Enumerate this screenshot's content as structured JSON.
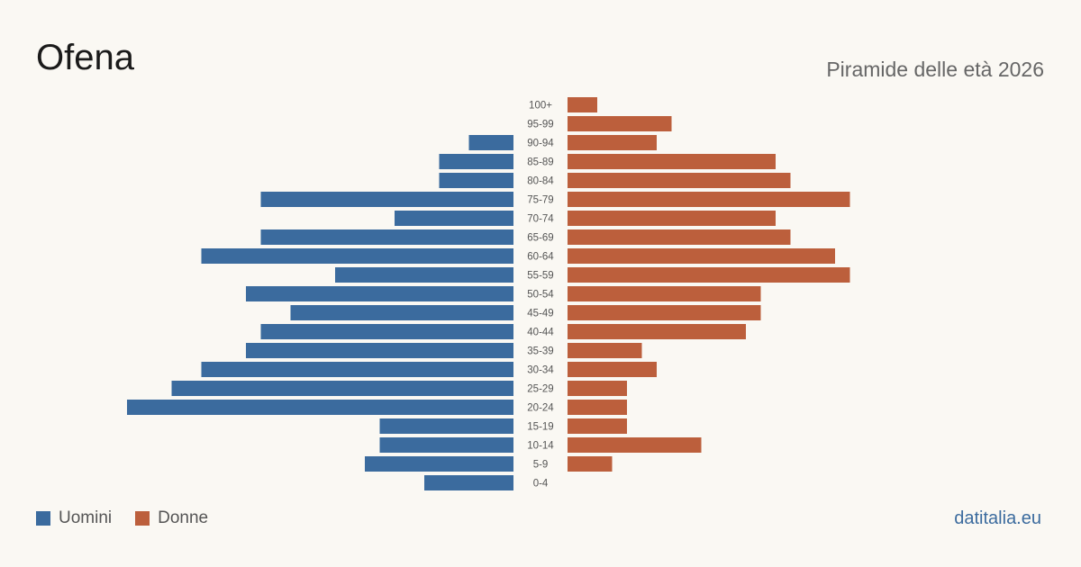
{
  "header": {
    "title": "Ofena",
    "subtitle": "Piramide delle età 2026"
  },
  "legend": {
    "men_label": "Uomini",
    "women_label": "Donne"
  },
  "footer": {
    "source": "datitalia.eu"
  },
  "colors": {
    "men": "#3b6b9e",
    "women": "#bc5f3c",
    "background": "#faf8f3"
  },
  "chart_data": {
    "type": "bar",
    "orientation": "horizontal-pyramid",
    "categories": [
      "100+",
      "95-99",
      "90-94",
      "85-89",
      "80-84",
      "75-79",
      "70-74",
      "65-69",
      "60-64",
      "55-59",
      "50-54",
      "45-49",
      "40-44",
      "35-39",
      "30-34",
      "25-29",
      "20-24",
      "15-19",
      "10-14",
      "5-9",
      "0-4"
    ],
    "series": [
      {
        "name": "Uomini",
        "values": [
          0,
          0,
          3,
          5,
          5,
          17,
          8,
          17,
          21,
          12,
          18,
          15,
          17,
          18,
          21,
          23,
          26,
          9,
          9,
          10,
          6
        ]
      },
      {
        "name": "Donne",
        "values": [
          2,
          7,
          6,
          14,
          15,
          19,
          14,
          15,
          18,
          19,
          13,
          13,
          12,
          5,
          6,
          4,
          4,
          4,
          9,
          3,
          0
        ]
      }
    ],
    "legend_position": "bottom-left",
    "grid": false
  }
}
